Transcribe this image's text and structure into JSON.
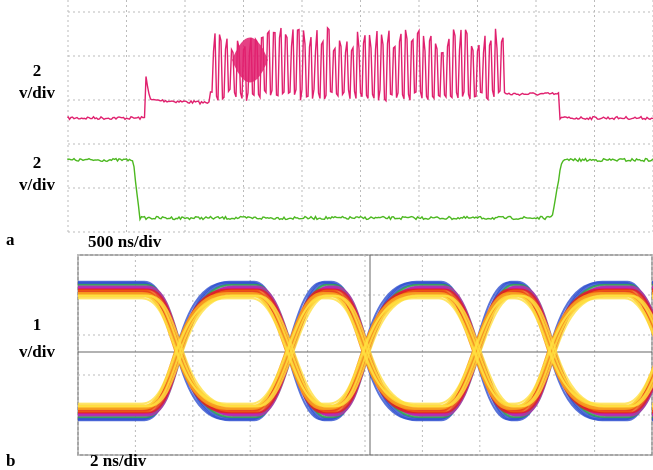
{
  "panel_a": {
    "label": "a",
    "channels": [
      {
        "scale": "2",
        "unit": "v/div"
      },
      {
        "scale": "2",
        "unit": "v/div"
      }
    ],
    "time_scale": "500 ns/div"
  },
  "panel_b": {
    "label": "b",
    "channels": [
      {
        "scale": "1",
        "unit": "v/div"
      }
    ],
    "time_scale": "2 ns/div"
  }
}
